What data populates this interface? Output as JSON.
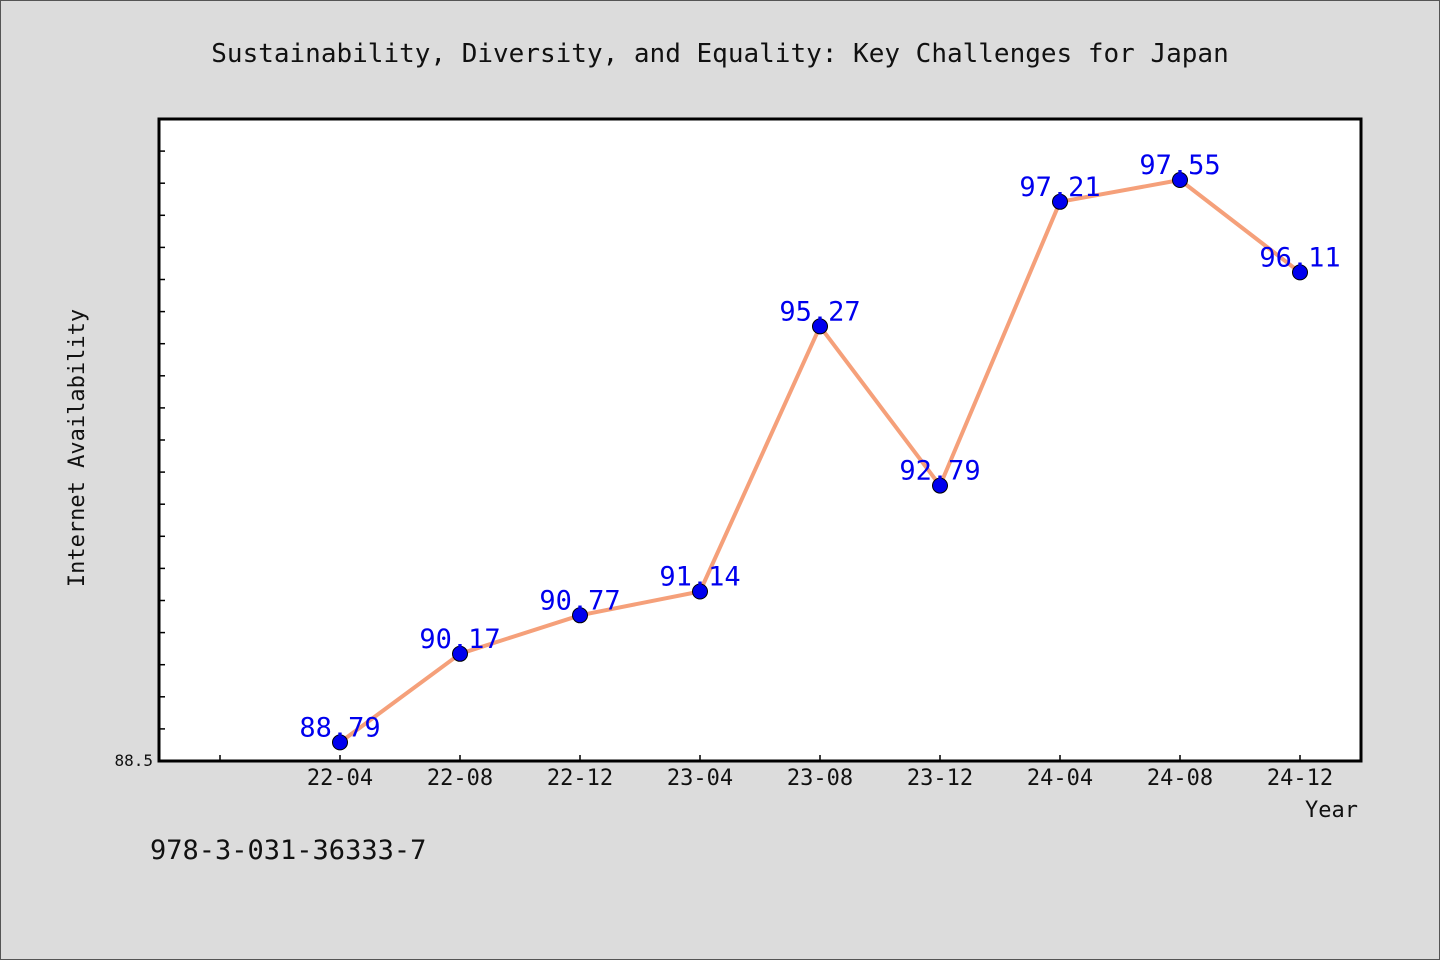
{
  "chart_data": {
    "type": "line",
    "title": "Sustainability, Diversity, and Equality: Key Challenges for Japan",
    "xlabel": "Year",
    "ylabel": "Internet Availability",
    "categories": [
      "22-04",
      "22-08",
      "22-12",
      "23-04",
      "23-08",
      "23-12",
      "24-04",
      "24-08",
      "24-12"
    ],
    "series": [
      {
        "values": [
          88.79,
          90.17,
          90.77,
          91.14,
          95.27,
          92.79,
          97.21,
          97.55,
          96.11
        ],
        "data_labels": [
          "88.79",
          "90.17",
          "90.77",
          "91.14",
          "95.27",
          "92.79",
          "97.21",
          "97.55",
          "96.11"
        ]
      }
    ],
    "ylim": [
      88.5,
      98.5
    ],
    "y_tick_labels": [
      "88.5"
    ],
    "grid": false,
    "legend": "none",
    "line_color": "#f5a07a",
    "marker_color": "#0000ee",
    "label_color": "#0000ee"
  },
  "footer": {
    "code": "978-3-031-36333-7"
  }
}
